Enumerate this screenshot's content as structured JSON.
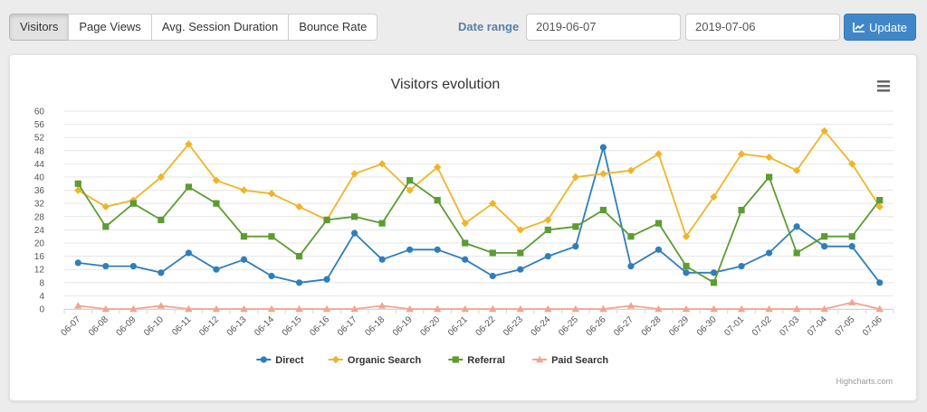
{
  "tabs": [
    {
      "label": "Visitors",
      "active": true
    },
    {
      "label": "Page Views",
      "active": false
    },
    {
      "label": "Avg. Session Duration",
      "active": false
    },
    {
      "label": "Bounce Rate",
      "active": false
    }
  ],
  "date_range": {
    "label": "Date range",
    "start": "2019-06-07",
    "end": "2019-07-06",
    "update_label": "Update",
    "update_icon": "line-chart-icon"
  },
  "menu_icon": "hamburger-menu-icon",
  "credits": "Highcharts.com",
  "colors": {
    "accent": "#3f87c7",
    "direct": "#2f7ebc",
    "organic": "#f0b429",
    "referral": "#5c9c33",
    "paid": "#f1a58e"
  },
  "chart_data": {
    "type": "line",
    "title": "Visitors evolution",
    "grid": true,
    "legend_position": "bottom",
    "ylim": [
      0,
      60
    ],
    "yticks": [
      0,
      4,
      8,
      12,
      16,
      20,
      24,
      28,
      32,
      36,
      40,
      44,
      48,
      52,
      56,
      60
    ],
    "categories": [
      "06-07",
      "06-08",
      "06-09",
      "06-10",
      "06-11",
      "06-12",
      "06-13",
      "06-14",
      "06-15",
      "06-16",
      "06-17",
      "06-18",
      "06-19",
      "06-20",
      "06-21",
      "06-22",
      "06-23",
      "06-24",
      "06-25",
      "06-26",
      "06-27",
      "06-28",
      "06-29",
      "06-30",
      "07-01",
      "07-02",
      "07-03",
      "07-04",
      "07-05",
      "07-06"
    ],
    "series": [
      {
        "name": "Direct",
        "color": "#2f7ebc",
        "marker": "circle",
        "values": [
          14,
          13,
          13,
          11,
          17,
          12,
          15,
          10,
          8,
          9,
          23,
          15,
          18,
          18,
          15,
          10,
          12,
          16,
          19,
          49,
          13,
          18,
          11,
          11,
          13,
          17,
          25,
          19,
          19,
          8
        ]
      },
      {
        "name": "Organic Search",
        "color": "#f0b429",
        "marker": "diamond",
        "values": [
          36,
          31,
          33,
          40,
          50,
          39,
          36,
          35,
          31,
          27,
          41,
          44,
          36,
          43,
          26,
          32,
          24,
          27,
          40,
          41,
          42,
          47,
          22,
          34,
          47,
          46,
          42,
          54,
          44,
          31
        ]
      },
      {
        "name": "Referral",
        "color": "#5c9c33",
        "marker": "square",
        "values": [
          38,
          25,
          32,
          27,
          37,
          32,
          22,
          22,
          16,
          27,
          28,
          26,
          39,
          33,
          20,
          17,
          17,
          24,
          25,
          30,
          22,
          26,
          13,
          8,
          30,
          40,
          17,
          22,
          22,
          33
        ]
      },
      {
        "name": "Paid Search",
        "color": "#f1a58e",
        "marker": "triangle",
        "values": [
          1,
          0,
          0,
          1,
          0,
          0,
          0,
          0,
          0,
          0,
          0,
          1,
          0,
          0,
          0,
          0,
          0,
          0,
          0,
          0,
          1,
          0,
          0,
          0,
          0,
          0,
          0,
          0,
          2,
          0
        ]
      }
    ]
  }
}
